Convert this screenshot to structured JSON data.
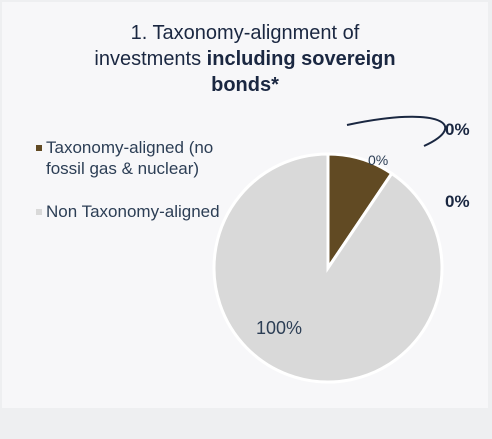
{
  "title": {
    "part1": "1. Taxonomy-alignment of",
    "part2": "investments ",
    "bold1": "including sovereign",
    "bold2": "bonds*"
  },
  "legend": [
    {
      "label": "Taxonomy-aligned (no fossil gas & nuclear)",
      "color": "#614a23"
    },
    {
      "label": "Non Taxonomy-aligned",
      "color": "#d9d9d9"
    }
  ],
  "callouts": [
    "0%",
    "0%"
  ],
  "chart_data": {
    "type": "pie",
    "slices": [
      {
        "label": "Taxonomy-aligned (no fossil gas & nuclear)",
        "value": 0,
        "display": "0%",
        "color": "#614a23"
      },
      {
        "label": "Non Taxonomy-aligned",
        "value": 100,
        "display": "100%",
        "color": "#d9d9d9"
      }
    ],
    "legend_position": "left"
  }
}
